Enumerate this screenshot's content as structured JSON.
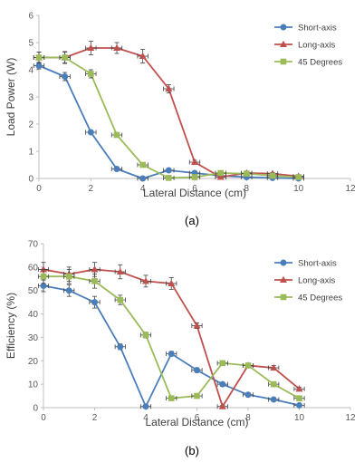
{
  "chart_data": [
    {
      "type": "line",
      "caption": "(a)",
      "xlabel": "Lateral Distance (cm)",
      "ylabel": "Load Power (W)",
      "xlim": [
        0,
        12
      ],
      "ylim": [
        0,
        6
      ],
      "xticks": [
        0,
        2,
        4,
        6,
        8,
        10,
        12
      ],
      "yticks": [
        0,
        1,
        2,
        3,
        4,
        5,
        6
      ],
      "grid": "none",
      "legend": "top-right",
      "series": [
        {
          "name": "Short-axis",
          "color": "#4a7ebb",
          "marker": "circle",
          "x": [
            0,
            1,
            2,
            3,
            4,
            5,
            6,
            7,
            8,
            9,
            10
          ],
          "y": [
            4.15,
            3.75,
            1.7,
            0.35,
            0.0,
            0.3,
            0.2,
            0.1,
            0.05,
            0.02,
            0.0
          ],
          "xerr": 0.2,
          "yerr": [
            0.12,
            0.15,
            0.07,
            0.05,
            0.02,
            0.03,
            0.03,
            0.02,
            0.02,
            0.02,
            0.02
          ]
        },
        {
          "name": "Long-axis",
          "color": "#c0504d",
          "marker": "triangle",
          "x": [
            0,
            1,
            2,
            3,
            4,
            5,
            6,
            7,
            8,
            9,
            10
          ],
          "y": [
            4.45,
            4.45,
            4.8,
            4.8,
            4.5,
            3.3,
            0.6,
            0.05,
            0.2,
            0.18,
            0.08
          ],
          "xerr": 0.2,
          "yerr": [
            0.2,
            0.22,
            0.25,
            0.2,
            0.25,
            0.15,
            0.07,
            0.03,
            0.04,
            0.04,
            0.03
          ]
        },
        {
          "name": "45 Degrees",
          "color": "#9bbb59",
          "marker": "square",
          "x": [
            0,
            1,
            2,
            3,
            4,
            5,
            6,
            7,
            8,
            9,
            10
          ],
          "y": [
            4.45,
            4.45,
            3.85,
            1.6,
            0.5,
            0.02,
            0.05,
            0.2,
            0.18,
            0.1,
            0.05
          ],
          "xerr": 0.2,
          "yerr": [
            0.2,
            0.2,
            0.15,
            0.07,
            0.05,
            0.02,
            0.02,
            0.03,
            0.03,
            0.02,
            0.02
          ]
        }
      ]
    },
    {
      "type": "line",
      "caption": "(b)",
      "xlabel": "Lateral Distance (cm)",
      "ylabel": "Efficiency (%)",
      "xlim": [
        0,
        12
      ],
      "ylim": [
        0,
        70
      ],
      "xticks": [
        0,
        2,
        4,
        6,
        8,
        10,
        12
      ],
      "yticks": [
        0,
        10,
        20,
        30,
        40,
        50,
        60,
        70
      ],
      "grid": "none",
      "legend": "top-right",
      "series": [
        {
          "name": "Short-axis",
          "color": "#4a7ebb",
          "marker": "circle",
          "x": [
            0,
            1,
            2,
            3,
            4,
            5,
            6,
            7,
            8,
            9,
            10
          ],
          "y": [
            52,
            50,
            45,
            26,
            0.5,
            23,
            16,
            10,
            5.5,
            3.5,
            1
          ],
          "xerr": 0.2,
          "yerr": [
            2.5,
            2.5,
            2.5,
            1.2,
            0.5,
            1,
            1,
            0.8,
            0.5,
            0.5,
            0.5
          ]
        },
        {
          "name": "Long-axis",
          "color": "#c0504d",
          "marker": "triangle",
          "x": [
            0,
            1,
            2,
            3,
            4,
            5,
            6,
            7,
            8,
            9,
            10
          ],
          "y": [
            59,
            57,
            59,
            58,
            54,
            53,
            35,
            0.5,
            18,
            17,
            8
          ],
          "xerr": 0.2,
          "yerr": [
            3,
            3,
            3,
            3,
            2.5,
            2.5,
            1.2,
            0.5,
            1,
            1,
            0.8
          ]
        },
        {
          "name": "45 Degrees",
          "color": "#9bbb59",
          "marker": "square",
          "x": [
            0,
            1,
            2,
            3,
            4,
            5,
            6,
            7,
            8,
            9,
            10
          ],
          "y": [
            56,
            56,
            54,
            46,
            31,
            4,
            5,
            19,
            18,
            10,
            4
          ],
          "xerr": 0.2,
          "yerr": [
            3,
            3,
            3,
            2,
            1.2,
            0.5,
            0.5,
            0.8,
            0.8,
            0.8,
            0.5
          ]
        }
      ]
    }
  ]
}
